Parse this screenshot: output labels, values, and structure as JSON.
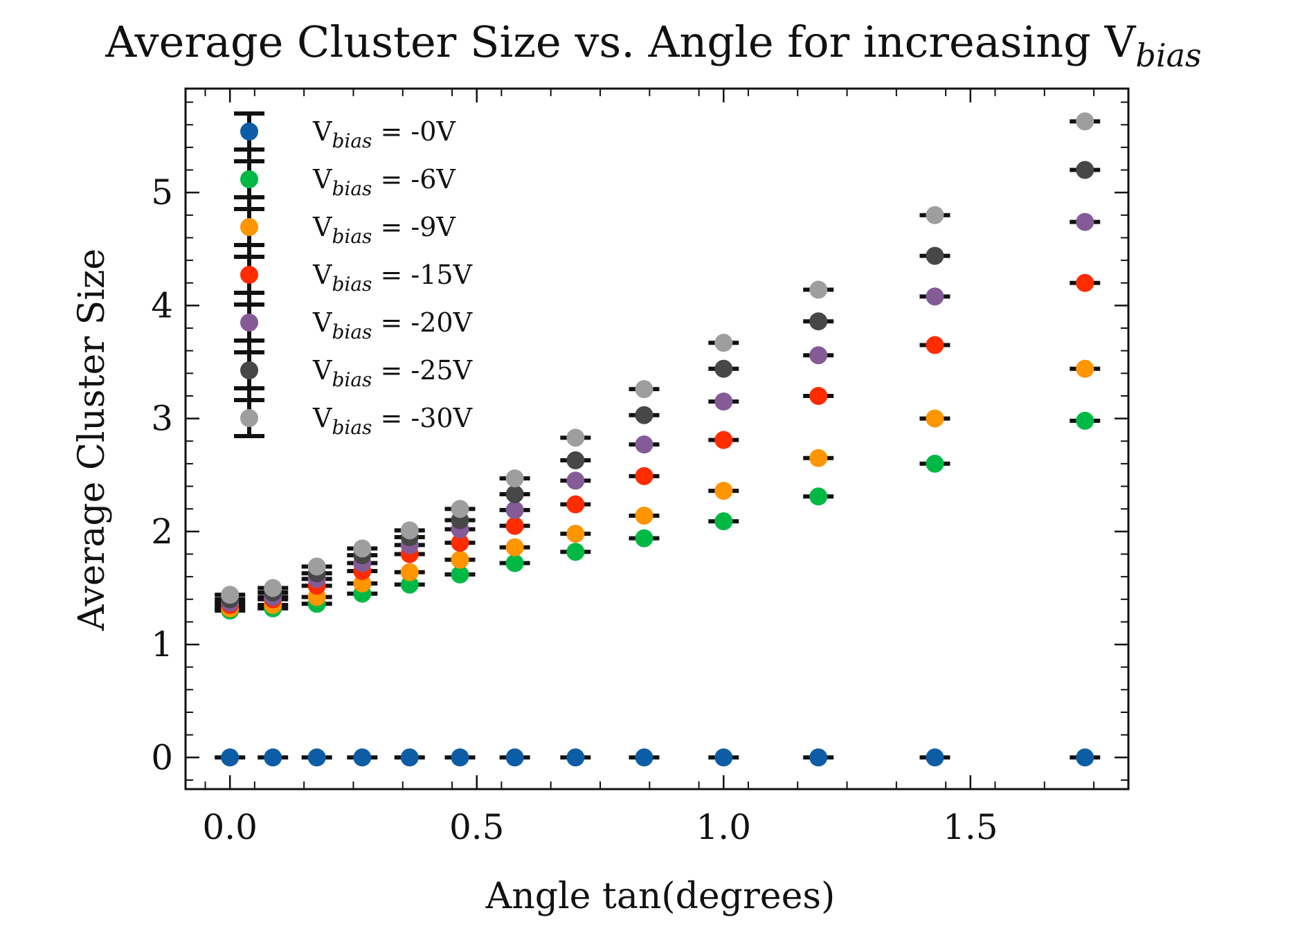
{
  "chart_data": {
    "type": "scatter",
    "title": "Average Cluster Size vs. Angle for increasing V",
    "title_subscript": "bias",
    "xlabel": "Angle tan(degrees)",
    "ylabel": "Average Cluster Size",
    "xlim": [
      -0.09,
      1.82
    ],
    "ylim": [
      -0.28,
      5.92
    ],
    "xticks": [
      0.0,
      0.5,
      1.0,
      1.5
    ],
    "xtick_labels": [
      "0.0",
      "0.5",
      "1.0",
      "1.5"
    ],
    "yticks": [
      0,
      1,
      2,
      3,
      4,
      5
    ],
    "ytick_labels": [
      "0",
      "1",
      "2",
      "3",
      "4",
      "5"
    ],
    "grid": false,
    "legend_position": "top-left",
    "error_bars": true,
    "x": [
      0.0,
      0.087,
      0.176,
      0.268,
      0.364,
      0.466,
      0.577,
      0.7,
      0.839,
      1.0,
      1.192,
      1.428,
      1.732
    ],
    "series": [
      {
        "name_prefix": "V",
        "name_subscript": "bias",
        "name_suffix": " = -0V",
        "color": "#0c5da5",
        "values": [
          0,
          0,
          0,
          0,
          0,
          0,
          0,
          0,
          0,
          0,
          0,
          0,
          0
        ]
      },
      {
        "name_prefix": "V",
        "name_subscript": "bias",
        "name_suffix": " = -6V",
        "color": "#00b945",
        "values": [
          1.3,
          1.32,
          1.36,
          1.45,
          1.53,
          1.62,
          1.72,
          1.82,
          1.94,
          2.09,
          2.31,
          2.6,
          2.98
        ]
      },
      {
        "name_prefix": "V",
        "name_subscript": "bias",
        "name_suffix": " = -9V",
        "color": "#ff9500",
        "values": [
          1.32,
          1.35,
          1.42,
          1.54,
          1.64,
          1.75,
          1.86,
          1.98,
          2.14,
          2.36,
          2.65,
          3.0,
          3.44
        ]
      },
      {
        "name_prefix": "V",
        "name_subscript": "bias",
        "name_suffix": " = -15V",
        "color": "#ff2c00",
        "values": [
          1.35,
          1.4,
          1.52,
          1.65,
          1.8,
          1.9,
          2.05,
          2.24,
          2.49,
          2.81,
          3.2,
          3.65,
          4.2
        ]
      },
      {
        "name_prefix": "V",
        "name_subscript": "bias",
        "name_suffix": " = -20V",
        "color": "#845b97",
        "values": [
          1.37,
          1.42,
          1.58,
          1.72,
          1.88,
          2.02,
          2.19,
          2.45,
          2.77,
          3.15,
          3.56,
          4.08,
          4.74
        ]
      },
      {
        "name_prefix": "V",
        "name_subscript": "bias",
        "name_suffix": " = -25V",
        "color": "#474747",
        "values": [
          1.4,
          1.46,
          1.63,
          1.79,
          1.95,
          2.1,
          2.33,
          2.63,
          3.03,
          3.44,
          3.86,
          4.44,
          5.2
        ]
      },
      {
        "name_prefix": "V",
        "name_subscript": "bias",
        "name_suffix": " = -30V",
        "color": "#9e9e9e",
        "values": [
          1.44,
          1.5,
          1.69,
          1.85,
          2.01,
          2.2,
          2.47,
          2.83,
          3.26,
          3.67,
          4.14,
          4.8,
          5.63
        ]
      }
    ]
  }
}
